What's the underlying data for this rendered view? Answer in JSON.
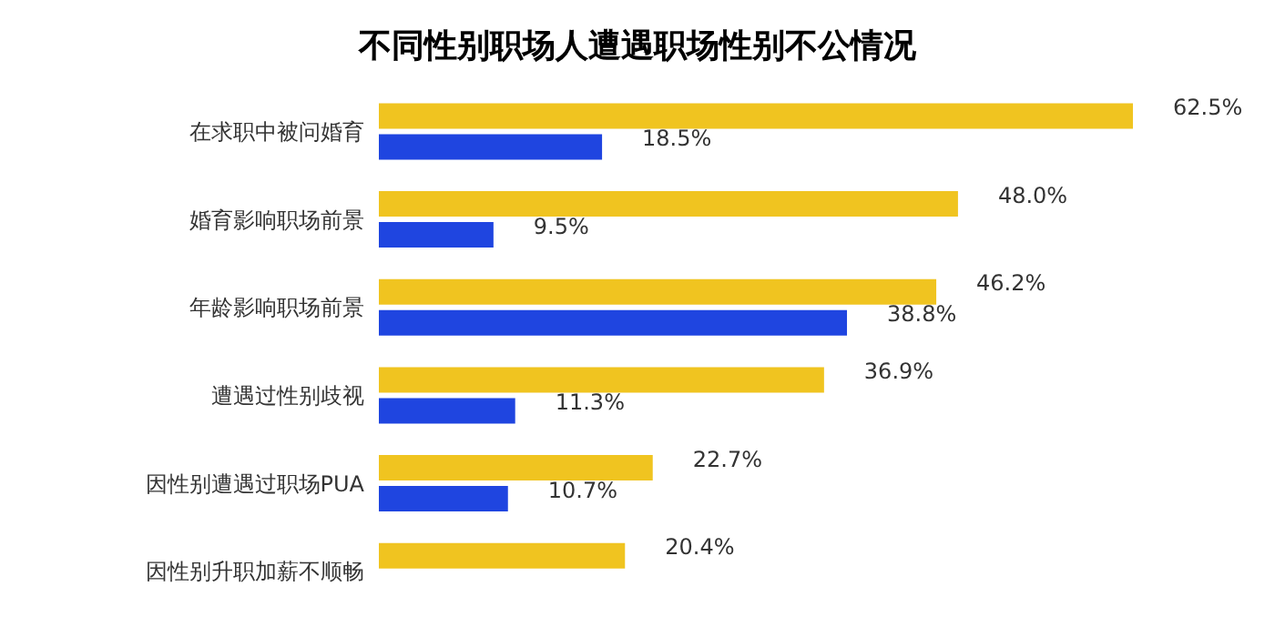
{
  "chart_data": {
    "type": "bar",
    "orientation": "horizontal",
    "title": "不同性别职场人遭遇职场性别不公情况",
    "categories": [
      "在求职中被问婚育",
      "婚育影响职场前景",
      "年龄影响职场前景",
      "遭遇过性别歧视",
      "因性别遭遇过职场PUA",
      "因性别升职加薪不顺畅"
    ],
    "series": [
      {
        "color": "#f0c420",
        "values": [
          62.5,
          48.0,
          46.2,
          36.9,
          22.7,
          20.4
        ],
        "value_labels": [
          "62.5%",
          "48.0%",
          "46.2%",
          "36.9%",
          "22.7%",
          "20.4%"
        ]
      },
      {
        "color": "#1f45e0",
        "values": [
          18.5,
          9.5,
          38.8,
          11.3,
          10.7,
          null
        ],
        "value_labels": [
          "18.5%",
          "9.5%",
          "38.8%",
          "11.3%",
          "10.7%",
          null
        ]
      }
    ],
    "grid": false,
    "legend": false
  }
}
